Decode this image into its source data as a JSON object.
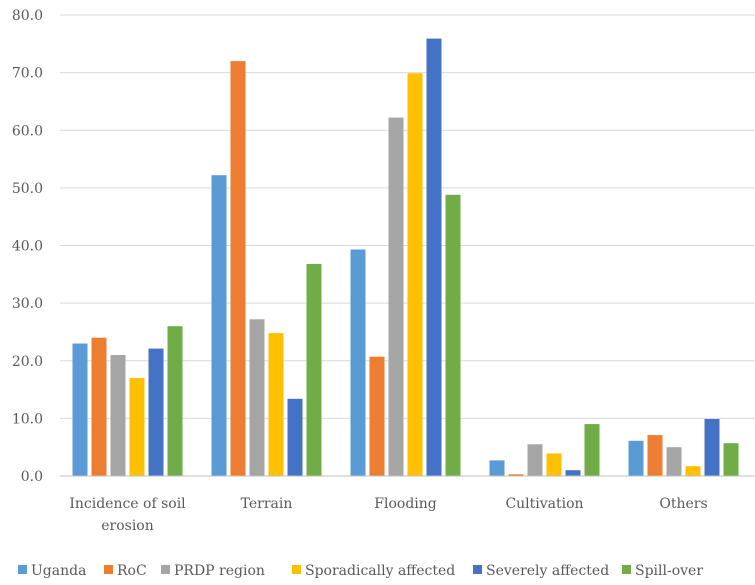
{
  "chart_data": {
    "type": "bar",
    "title": "",
    "xlabel": "",
    "ylabel": "",
    "categories": [
      "Incidence of soil erosion",
      "Terrain",
      "Flooding",
      "Cultivation",
      "Others"
    ],
    "category_lines": [
      [
        "Incidence of soil",
        "erosion"
      ],
      [
        "Terrain"
      ],
      [
        "Flooding"
      ],
      [
        "Cultivation"
      ],
      [
        "Others"
      ]
    ],
    "ylim": [
      0,
      80
    ],
    "yticks": [
      "0.0",
      "10.0",
      "20.0",
      "30.0",
      "40.0",
      "50.0",
      "60.0",
      "70.0",
      "80.0"
    ],
    "grid": true,
    "legend_position": "bottom",
    "series": [
      {
        "name": "Uganda",
        "color": "#5b9bd5",
        "values": [
          23.0,
          52.2,
          39.3,
          2.7,
          6.1
        ]
      },
      {
        "name": "RoC",
        "color": "#ed7d31",
        "values": [
          24.0,
          72.0,
          20.7,
          0.3,
          7.1
        ]
      },
      {
        "name": "PRDP region",
        "color": "#a5a5a5",
        "values": [
          21.0,
          27.2,
          62.2,
          5.5,
          5.0
        ]
      },
      {
        "name": "Sporadically affected",
        "color": "#ffc000",
        "values": [
          17.0,
          24.8,
          69.9,
          3.9,
          1.7
        ]
      },
      {
        "name": "Severely affected",
        "color": "#4472c4",
        "values": [
          22.1,
          13.4,
          75.9,
          1.0,
          9.9
        ]
      },
      {
        "name": "Spill-over",
        "color": "#70ad47",
        "values": [
          26.0,
          36.8,
          48.8,
          9.0,
          5.7
        ]
      }
    ]
  }
}
